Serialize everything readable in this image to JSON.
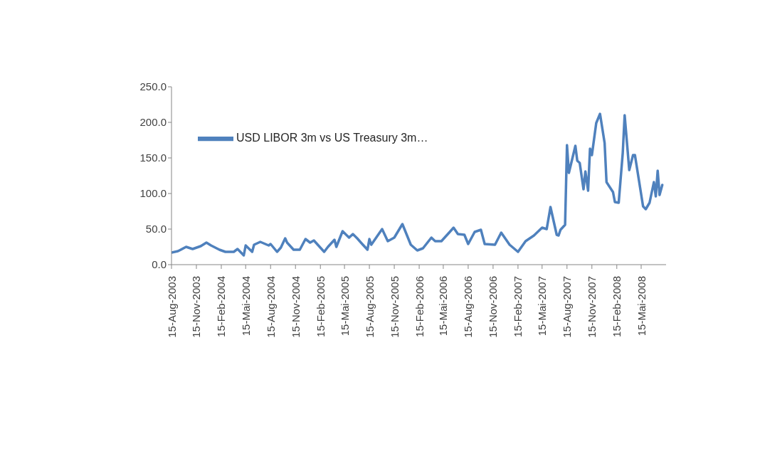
{
  "chart_data": {
    "type": "line",
    "x": [
      "2003-08-15",
      "2003-09-08",
      "2003-10-08",
      "2003-11-01",
      "2003-12-01",
      "2003-12-22",
      "2004-01-08",
      "2004-02-08",
      "2004-03-01",
      "2004-04-01",
      "2004-04-15",
      "2004-05-08",
      "2004-05-15",
      "2004-06-08",
      "2004-06-15",
      "2004-07-08",
      "2004-08-08",
      "2004-08-15",
      "2004-09-08",
      "2004-09-22",
      "2004-10-08",
      "2004-10-15",
      "2004-11-08",
      "2004-12-01",
      "2004-12-22",
      "2005-01-08",
      "2005-01-22",
      "2005-03-01",
      "2005-03-15",
      "2005-04-08",
      "2005-04-15",
      "2005-05-08",
      "2005-06-01",
      "2005-06-15",
      "2005-07-01",
      "2005-07-22",
      "2005-08-08",
      "2005-08-15",
      "2005-08-22",
      "2005-10-01",
      "2005-10-22",
      "2005-11-15",
      "2005-12-15",
      "2006-01-15",
      "2006-02-08",
      "2006-03-01",
      "2006-04-01",
      "2006-04-15",
      "2006-05-08",
      "2006-06-08",
      "2006-06-22",
      "2006-07-08",
      "2006-08-01",
      "2006-08-15",
      "2006-09-08",
      "2006-10-01",
      "2006-10-15",
      "2006-11-22",
      "2006-12-15",
      "2007-01-15",
      "2007-02-15",
      "2007-03-15",
      "2007-04-15",
      "2007-05-15",
      "2007-06-01",
      "2007-06-15",
      "2007-07-08",
      "2007-07-15",
      "2007-07-22",
      "2007-08-08",
      "2007-08-15",
      "2007-08-22",
      "2007-09-15",
      "2007-09-22",
      "2007-10-01",
      "2007-10-15",
      "2007-10-22",
      "2007-11-01",
      "2007-11-08",
      "2007-11-15",
      "2007-12-01",
      "2007-12-15",
      "2008-01-01",
      "2008-01-08",
      "2008-02-01",
      "2008-02-08",
      "2008-02-22",
      "2008-03-08",
      "2008-03-15",
      "2008-04-01",
      "2008-04-15",
      "2008-04-22",
      "2008-05-22",
      "2008-06-01",
      "2008-06-15",
      "2008-07-01",
      "2008-07-08",
      "2008-07-15",
      "2008-07-22",
      "2008-08-01"
    ],
    "series": [
      {
        "name": "USD LIBOR 3m vs US Treasury 3m…",
        "color": "#4f81bd",
        "values": [
          17,
          19,
          25,
          22,
          26,
          31,
          27,
          21,
          18,
          18,
          22,
          13,
          27,
          18,
          28,
          32,
          27,
          29,
          18,
          24,
          37,
          31,
          21,
          21,
          36,
          31,
          34,
          18,
          25,
          35,
          25,
          47,
          38,
          43,
          37,
          28,
          21,
          36,
          28,
          50,
          33,
          38,
          57,
          28,
          20,
          23,
          38,
          33,
          33,
          46,
          52,
          43,
          42,
          29,
          46,
          49,
          29,
          28,
          45,
          28,
          18,
          33,
          41,
          52,
          50,
          81,
          42,
          41,
          49,
          56,
          168,
          129,
          167,
          146,
          143,
          106,
          131,
          104,
          163,
          154,
          199,
          212,
          171,
          116,
          102,
          88,
          87,
          157,
          210,
          133,
          154,
          154,
          82,
          78,
          87,
          116,
          96,
          132,
          98,
          112
        ]
      }
    ],
    "xlim": [
      "2003-08-15",
      "2008-08-15"
    ],
    "xticks": [
      {
        "value": "2003-08-15",
        "label": "15-Aug-2003"
      },
      {
        "value": "2003-11-15",
        "label": "15-Nov-2003"
      },
      {
        "value": "2004-02-15",
        "label": "15-Feb-2004"
      },
      {
        "value": "2004-05-15",
        "label": "15-Mai-2004"
      },
      {
        "value": "2004-08-15",
        "label": "15-Aug-2004"
      },
      {
        "value": "2004-11-15",
        "label": "15-Nov-2004"
      },
      {
        "value": "2005-02-15",
        "label": "15-Feb-2005"
      },
      {
        "value": "2005-05-15",
        "label": "15-Mai-2005"
      },
      {
        "value": "2005-08-15",
        "label": "15-Aug-2005"
      },
      {
        "value": "2005-11-15",
        "label": "15-Nov-2005"
      },
      {
        "value": "2006-02-15",
        "label": "15-Feb-2006"
      },
      {
        "value": "2006-05-15",
        "label": "15-Mai-2006"
      },
      {
        "value": "2006-08-15",
        "label": "15-Aug-2006"
      },
      {
        "value": "2006-11-15",
        "label": "15-Nov-2006"
      },
      {
        "value": "2007-02-15",
        "label": "15-Feb-2007"
      },
      {
        "value": "2007-05-15",
        "label": "15-Mai-2007"
      },
      {
        "value": "2007-08-15",
        "label": "15-Aug-2007"
      },
      {
        "value": "2007-11-15",
        "label": "15-Nov-2007"
      },
      {
        "value": "2008-02-15",
        "label": "15-Feb-2008"
      },
      {
        "value": "2008-05-15",
        "label": "15-Mai-2008"
      }
    ],
    "ylim": [
      0,
      250
    ],
    "yticks": [
      {
        "value": 0,
        "label": "0.0"
      },
      {
        "value": 50,
        "label": "50.0"
      },
      {
        "value": 100,
        "label": "100.0"
      },
      {
        "value": 150,
        "label": "150.0"
      },
      {
        "value": 200,
        "label": "200.0"
      },
      {
        "value": 250,
        "label": "250.0"
      }
    ],
    "grid": false,
    "legend": "top left"
  }
}
